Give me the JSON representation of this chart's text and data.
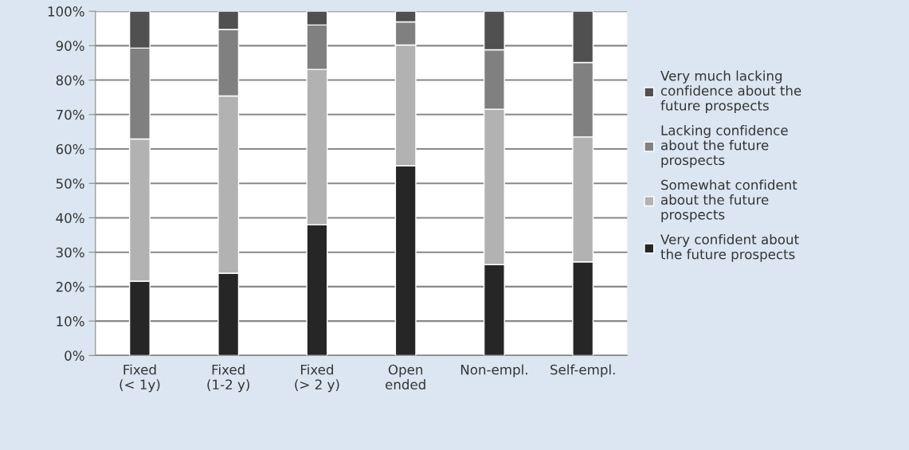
{
  "chart_data": {
    "type": "bar",
    "stacked": true,
    "categories": [
      "Fixed\n(< 1y)",
      "Fixed\n(1-2 y)",
      "Fixed\n(> 2 y)",
      "Open\nended",
      "Non-empl.",
      "Self-empl."
    ],
    "series": [
      {
        "name": "Very confident about\nthe future prospects",
        "color": "#262626",
        "values": [
          21.6,
          23.9,
          38.0,
          55.1,
          26.4,
          27.2
        ]
      },
      {
        "name": "Somewhat confident\nabout the future\nprospects",
        "color": "#b2b2b2",
        "values": [
          41.3,
          51.5,
          45.1,
          35.1,
          45.1,
          36.3
        ]
      },
      {
        "name": "Lacking confidence\nabout the future\nprospects",
        "color": "#808080",
        "values": [
          26.4,
          19.3,
          12.9,
          6.7,
          17.3,
          21.6
        ]
      },
      {
        "name": "Very much lacking\nconfidence about the\nfuture prospects",
        "color": "#505050",
        "values": [
          10.7,
          5.3,
          4.0,
          3.1,
          11.2,
          14.9
        ]
      }
    ],
    "ylim": [
      0,
      100
    ],
    "yticks": [
      {
        "value": 0,
        "label": "0%"
      },
      {
        "value": 10,
        "label": "10%"
      },
      {
        "value": 20,
        "label": "20%"
      },
      {
        "value": 30,
        "label": "30%"
      },
      {
        "value": 40,
        "label": "40%"
      },
      {
        "value": 50,
        "label": "50%"
      },
      {
        "value": 60,
        "label": "60%"
      },
      {
        "value": 70,
        "label": "70%"
      },
      {
        "value": 80,
        "label": "80%"
      },
      {
        "value": 90,
        "label": "90%"
      },
      {
        "value": 100,
        "label": "100%"
      }
    ],
    "grid": "y",
    "legend": "right"
  }
}
